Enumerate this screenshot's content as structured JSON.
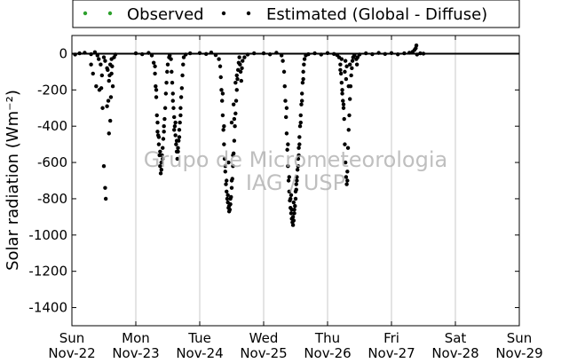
{
  "chart_data": {
    "type": "scatter",
    "ylabel": "Solar radiation (Wm⁻²)",
    "ylim": [
      -1500,
      100
    ],
    "yticks": [
      0,
      -200,
      -400,
      -600,
      -800,
      -1000,
      -1200,
      -1400
    ],
    "xlim": [
      0,
      7
    ],
    "xticks": [
      {
        "day": "Sun",
        "date": "Nov-22"
      },
      {
        "day": "Mon",
        "date": "Nov-23"
      },
      {
        "day": "Tue",
        "date": "Nov-24"
      },
      {
        "day": "Wed",
        "date": "Nov-25"
      },
      {
        "day": "Thu",
        "date": "Nov-26"
      },
      {
        "day": "Fri",
        "date": "Nov-27"
      },
      {
        "day": "Sat",
        "date": "Nov-28"
      },
      {
        "day": "Sun",
        "date": "Nov-29"
      }
    ],
    "grid": "vertical",
    "legend_position": "top",
    "series": [
      {
        "name": "Observed",
        "color": "#2ca02c",
        "values": []
      },
      {
        "name": "Estimated (Global - Diffuse)",
        "color": "#000000",
        "points": [
          [
            0.05,
            -5
          ],
          [
            0.12,
            2
          ],
          [
            0.2,
            5
          ],
          [
            0.3,
            -3
          ],
          [
            0.36,
            8
          ],
          [
            0.4,
            -10
          ],
          [
            0.42,
            -30
          ],
          [
            0.45,
            -60
          ],
          [
            0.47,
            -120
          ],
          [
            0.5,
            -20
          ],
          [
            0.52,
            -40
          ],
          [
            0.55,
            -80
          ],
          [
            0.58,
            -150
          ],
          [
            0.6,
            -60
          ],
          [
            0.62,
            -30
          ],
          [
            0.3,
            -60
          ],
          [
            0.33,
            -110
          ],
          [
            0.38,
            -180
          ],
          [
            0.43,
            -200
          ],
          [
            0.48,
            -300
          ],
          [
            0.5,
            -620
          ],
          [
            0.52,
            -740
          ],
          [
            0.53,
            -800
          ],
          [
            0.55,
            -290
          ],
          [
            0.57,
            -260
          ],
          [
            0.58,
            -440
          ],
          [
            0.6,
            -370
          ],
          [
            0.62,
            -110
          ],
          [
            0.63,
            -70
          ],
          [
            0.64,
            -180
          ],
          [
            0.66,
            -20
          ],
          [
            0.68,
            -5
          ],
          [
            0.46,
            -190
          ],
          [
            0.56,
            -90
          ],
          [
            0.59,
            -120
          ],
          [
            0.61,
            -240
          ],
          [
            1.0,
            2
          ],
          [
            1.1,
            -3
          ],
          [
            1.2,
            4
          ],
          [
            1.25,
            -10
          ],
          [
            1.28,
            -50
          ],
          [
            1.3,
            -110
          ],
          [
            1.31,
            -180
          ],
          [
            1.32,
            -240
          ],
          [
            1.33,
            -340
          ],
          [
            1.34,
            -430
          ],
          [
            1.35,
            -450
          ],
          [
            1.36,
            -500
          ],
          [
            1.37,
            -560
          ],
          [
            1.38,
            -620
          ],
          [
            1.39,
            -660
          ],
          [
            1.4,
            -600
          ],
          [
            1.41,
            -560
          ],
          [
            1.42,
            -520
          ],
          [
            1.43,
            -470
          ],
          [
            1.44,
            -430
          ],
          [
            1.45,
            -360
          ],
          [
            1.46,
            -300
          ],
          [
            1.47,
            -220
          ],
          [
            1.48,
            -160
          ],
          [
            1.49,
            -100
          ],
          [
            1.5,
            -60
          ],
          [
            1.52,
            -20
          ],
          [
            1.53,
            -10
          ],
          [
            1.55,
            -30
          ],
          [
            1.56,
            -100
          ],
          [
            1.57,
            -160
          ],
          [
            1.58,
            -220
          ],
          [
            1.59,
            -300
          ],
          [
            1.6,
            -350
          ],
          [
            1.61,
            -400
          ],
          [
            1.62,
            -450
          ],
          [
            1.63,
            -500
          ],
          [
            1.64,
            -540
          ],
          [
            1.65,
            -580
          ],
          [
            1.66,
            -540
          ],
          [
            1.67,
            -480
          ],
          [
            1.68,
            -420
          ],
          [
            1.69,
            -380
          ],
          [
            1.7,
            -300
          ],
          [
            1.71,
            -240
          ],
          [
            1.72,
            -190
          ],
          [
            1.73,
            -120
          ],
          [
            1.74,
            -60
          ],
          [
            1.75,
            -20
          ],
          [
            1.78,
            -5
          ],
          [
            1.85,
            2
          ],
          [
            1.3,
            -70
          ],
          [
            1.32,
            -200
          ],
          [
            1.34,
            -380
          ],
          [
            1.36,
            -460
          ],
          [
            1.38,
            -540
          ],
          [
            1.4,
            -640
          ],
          [
            1.42,
            -580
          ],
          [
            1.44,
            -400
          ],
          [
            1.58,
            -260
          ],
          [
            1.6,
            -420
          ],
          [
            1.62,
            -380
          ],
          [
            1.64,
            -480
          ],
          [
            1.66,
            -520
          ],
          [
            1.68,
            -460
          ],
          [
            1.7,
            -340
          ],
          [
            2.0,
            3
          ],
          [
            2.1,
            -2
          ],
          [
            2.18,
            6
          ],
          [
            2.25,
            -8
          ],
          [
            2.3,
            -30
          ],
          [
            2.32,
            -70
          ],
          [
            2.33,
            -130
          ],
          [
            2.34,
            -200
          ],
          [
            2.35,
            -260
          ],
          [
            2.36,
            -340
          ],
          [
            2.37,
            -420
          ],
          [
            2.38,
            -500
          ],
          [
            2.39,
            -580
          ],
          [
            2.4,
            -650
          ],
          [
            2.41,
            -720
          ],
          [
            2.42,
            -760
          ],
          [
            2.43,
            -800
          ],
          [
            2.44,
            -820
          ],
          [
            2.45,
            -850
          ],
          [
            2.46,
            -870
          ],
          [
            2.47,
            -860
          ],
          [
            2.48,
            -830
          ],
          [
            2.49,
            -790
          ],
          [
            2.5,
            -740
          ],
          [
            2.51,
            -690
          ],
          [
            2.52,
            -620
          ],
          [
            2.53,
            -550
          ],
          [
            2.54,
            -480
          ],
          [
            2.55,
            -400
          ],
          [
            2.56,
            -330
          ],
          [
            2.57,
            -260
          ],
          [
            2.58,
            -200
          ],
          [
            2.59,
            -140
          ],
          [
            2.6,
            -90
          ],
          [
            2.61,
            -50
          ],
          [
            2.62,
            -20
          ],
          [
            2.63,
            -60
          ],
          [
            2.64,
            -100
          ],
          [
            2.65,
            -150
          ],
          [
            2.66,
            -80
          ],
          [
            2.67,
            -40
          ],
          [
            2.7,
            -20
          ],
          [
            2.75,
            -5
          ],
          [
            2.85,
            2
          ],
          [
            2.36,
            -220
          ],
          [
            2.38,
            -400
          ],
          [
            2.4,
            -620
          ],
          [
            2.42,
            -700
          ],
          [
            2.44,
            -780
          ],
          [
            2.46,
            -840
          ],
          [
            2.48,
            -800
          ],
          [
            2.5,
            -700
          ],
          [
            2.52,
            -560
          ],
          [
            2.54,
            -360
          ],
          [
            2.56,
            -160
          ],
          [
            2.45,
            -600
          ],
          [
            2.5,
            -380
          ],
          [
            2.53,
            -280
          ],
          [
            2.58,
            -120
          ],
          [
            3.0,
            2
          ],
          [
            3.1,
            -4
          ],
          [
            3.2,
            5
          ],
          [
            3.28,
            -10
          ],
          [
            3.3,
            -40
          ],
          [
            3.32,
            -100
          ],
          [
            3.33,
            -180
          ],
          [
            3.34,
            -260
          ],
          [
            3.35,
            -350
          ],
          [
            3.36,
            -440
          ],
          [
            3.37,
            -530
          ],
          [
            3.38,
            -620
          ],
          [
            3.39,
            -700
          ],
          [
            3.4,
            -760
          ],
          [
            3.41,
            -810
          ],
          [
            3.42,
            -850
          ],
          [
            3.43,
            -880
          ],
          [
            3.44,
            -910
          ],
          [
            3.45,
            -930
          ],
          [
            3.46,
            -945
          ],
          [
            3.47,
            -920
          ],
          [
            3.48,
            -880
          ],
          [
            3.49,
            -840
          ],
          [
            3.5,
            -800
          ],
          [
            3.51,
            -750
          ],
          [
            3.52,
            -700
          ],
          [
            3.53,
            -640
          ],
          [
            3.54,
            -580
          ],
          [
            3.55,
            -520
          ],
          [
            3.56,
            -460
          ],
          [
            3.57,
            -400
          ],
          [
            3.58,
            -340
          ],
          [
            3.59,
            -280
          ],
          [
            3.6,
            -220
          ],
          [
            3.61,
            -160
          ],
          [
            3.62,
            -100
          ],
          [
            3.63,
            -60
          ],
          [
            3.64,
            -30
          ],
          [
            3.66,
            -10
          ],
          [
            3.7,
            -3
          ],
          [
            3.8,
            2
          ],
          [
            3.9,
            -5
          ],
          [
            3.36,
            -300
          ],
          [
            3.38,
            -500
          ],
          [
            3.4,
            -680
          ],
          [
            3.42,
            -800
          ],
          [
            3.44,
            -860
          ],
          [
            3.46,
            -900
          ],
          [
            3.48,
            -860
          ],
          [
            3.5,
            -760
          ],
          [
            3.52,
            -680
          ],
          [
            3.54,
            -620
          ],
          [
            3.56,
            -500
          ],
          [
            3.58,
            -380
          ],
          [
            3.6,
            -260
          ],
          [
            3.62,
            -140
          ],
          [
            3.43,
            -780
          ],
          [
            3.47,
            -820
          ],
          [
            3.51,
            -720
          ],
          [
            3.55,
            -560
          ],
          [
            4.0,
            3
          ],
          [
            4.1,
            -2
          ],
          [
            4.15,
            -8
          ],
          [
            4.18,
            -20
          ],
          [
            4.2,
            -60
          ],
          [
            4.21,
            -110
          ],
          [
            4.22,
            -160
          ],
          [
            4.23,
            -220
          ],
          [
            4.24,
            -260
          ],
          [
            4.25,
            -300
          ],
          [
            4.26,
            -360
          ],
          [
            4.27,
            -500
          ],
          [
            4.28,
            -600
          ],
          [
            4.29,
            -680
          ],
          [
            4.3,
            -720
          ],
          [
            4.31,
            -650
          ],
          [
            4.32,
            -520
          ],
          [
            4.33,
            -420
          ],
          [
            4.34,
            -340
          ],
          [
            4.35,
            -250
          ],
          [
            4.36,
            -180
          ],
          [
            4.37,
            -120
          ],
          [
            4.38,
            -80
          ],
          [
            4.39,
            -40
          ],
          [
            4.4,
            -20
          ],
          [
            4.42,
            -10
          ],
          [
            4.45,
            -30
          ],
          [
            4.46,
            -60
          ],
          [
            4.47,
            -20
          ],
          [
            4.5,
            -5
          ],
          [
            4.2,
            -90
          ],
          [
            4.23,
            -200
          ],
          [
            4.25,
            -280
          ],
          [
            4.27,
            -100
          ],
          [
            4.29,
            -140
          ],
          [
            4.31,
            -700
          ],
          [
            4.33,
            -180
          ],
          [
            4.35,
            -60
          ],
          [
            4.22,
            -30
          ],
          [
            4.28,
            -40
          ],
          [
            4.3,
            -70
          ],
          [
            4.6,
            2
          ],
          [
            4.7,
            -3
          ],
          [
            4.8,
            4
          ],
          [
            4.9,
            -2
          ],
          [
            5.0,
            3
          ],
          [
            5.1,
            -4
          ],
          [
            5.2,
            2
          ],
          [
            5.28,
            5
          ],
          [
            5.33,
            10
          ],
          [
            5.36,
            20
          ],
          [
            5.38,
            30
          ],
          [
            5.39,
            45
          ],
          [
            5.4,
            -5
          ],
          [
            5.45,
            2
          ],
          [
            5.5,
            0
          ]
        ]
      }
    ]
  },
  "watermark": {
    "line1": "Grupo de Micrometeorologia",
    "line2": "IAG / USP"
  }
}
